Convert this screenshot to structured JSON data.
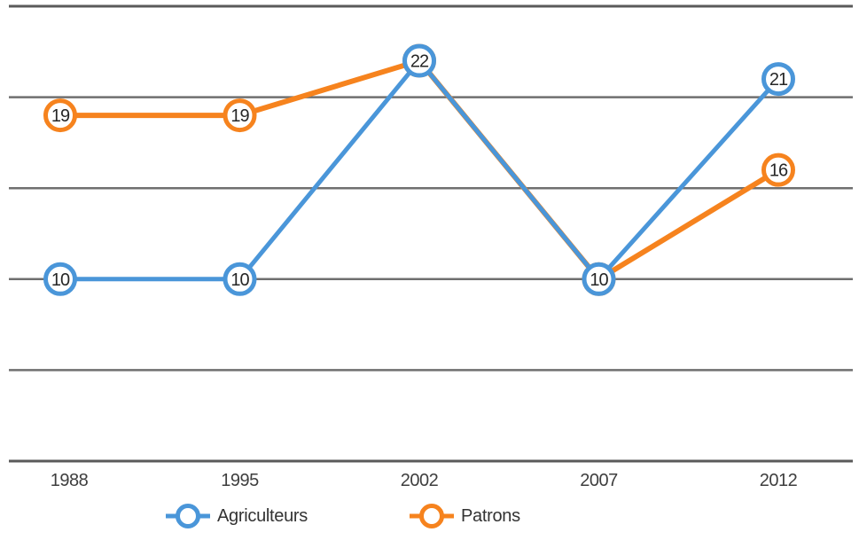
{
  "chart_data": {
    "type": "line",
    "title": "",
    "xlabel": "",
    "ylabel": "",
    "categories": [
      "1988",
      "1995",
      "2002",
      "2007",
      "2012"
    ],
    "series": [
      {
        "name": "Agriculteurs",
        "color": "#4A96D9",
        "values": [
          10,
          10,
          22,
          10,
          21
        ]
      },
      {
        "name": "Patrons",
        "color": "#F6831E",
        "values": [
          19,
          19,
          22,
          10,
          16
        ]
      }
    ],
    "point_labels": {
      "Agriculteurs": [
        "10",
        "10",
        "22",
        "10",
        "21"
      ],
      "Patrons": [
        "19",
        "19",
        "22",
        "10",
        "16"
      ]
    },
    "ylim": [
      0,
      25
    ],
    "grid_step": 5,
    "grid": "on",
    "legend_position": "bottom",
    "marker_style": "open-circle-with-value-label",
    "colors": {
      "gridline": "#6f6f6f",
      "axis_line": "#5a5a5a",
      "value_label": "#262626",
      "tick_label": "#3e3e3e",
      "marker_fill": "#ffffff"
    }
  }
}
